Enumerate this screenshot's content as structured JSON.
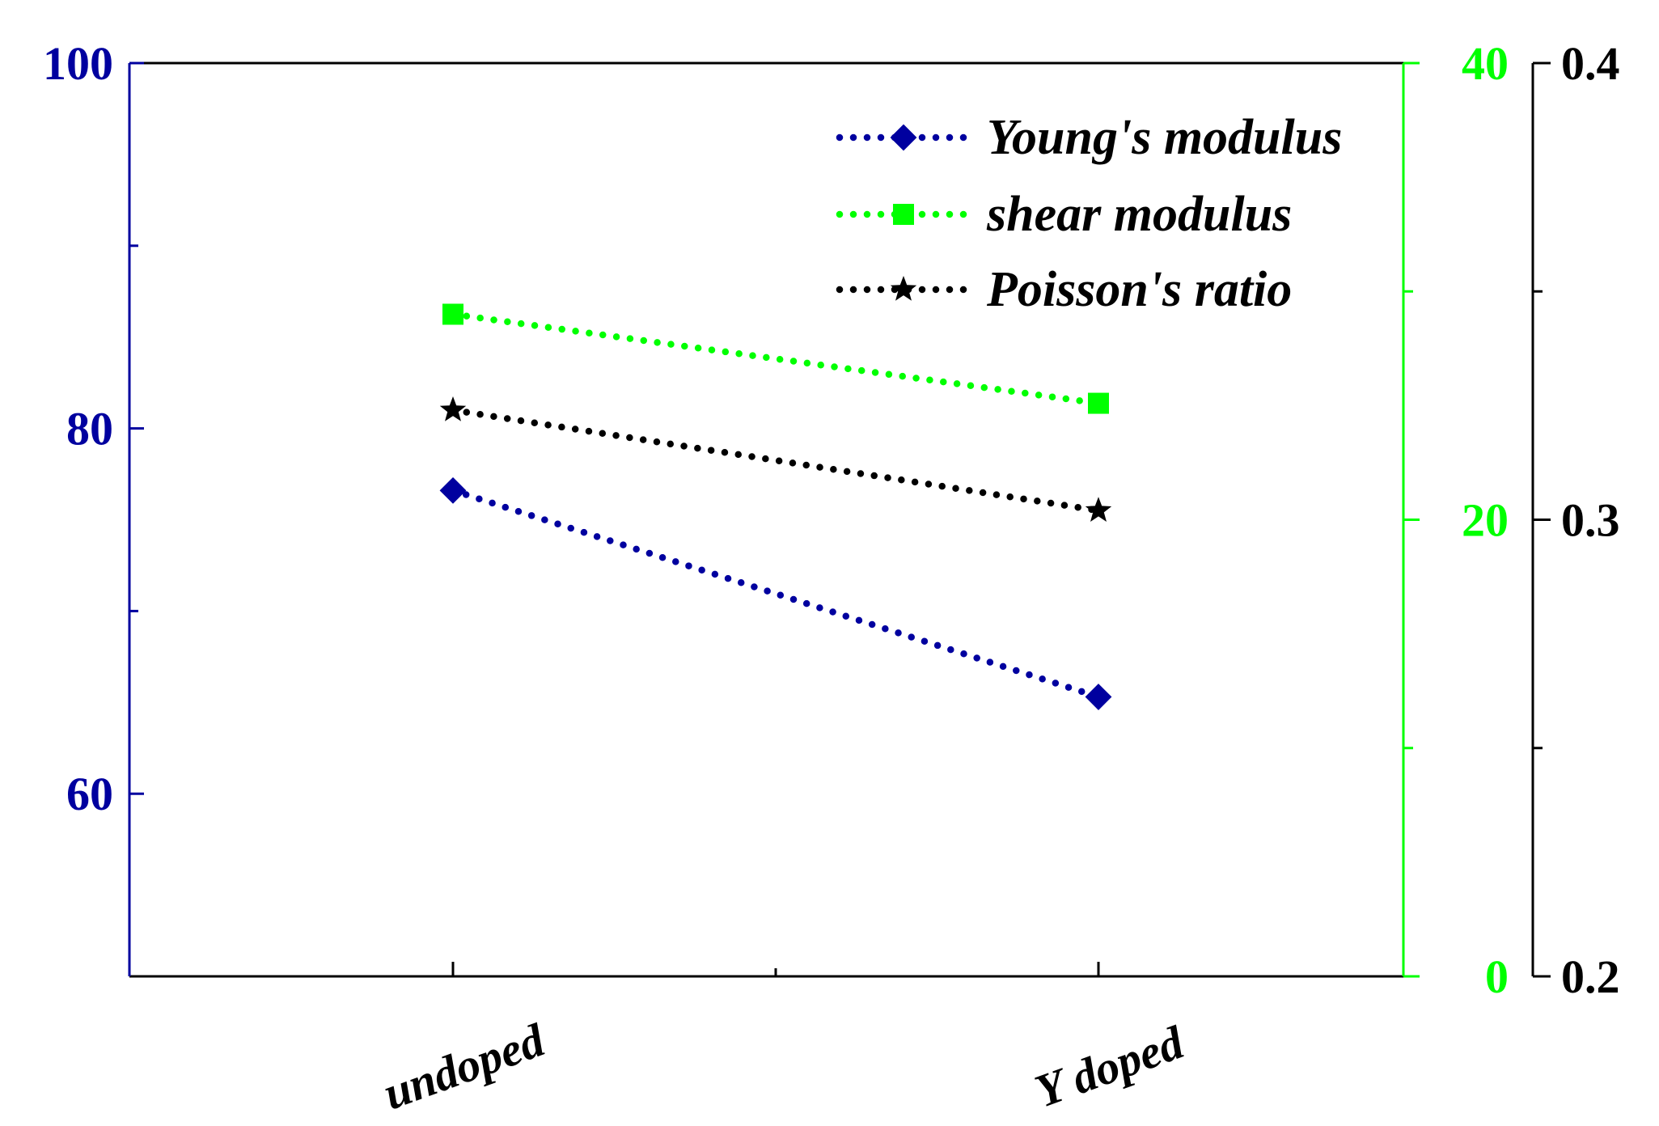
{
  "chart_data": {
    "type": "line",
    "categories": [
      "undoped",
      "Y doped"
    ],
    "series": [
      {
        "name": "Young's modulus",
        "axis": "left",
        "color": "#00009f",
        "marker": "diamond",
        "values": [
          76.6,
          65.3
        ]
      },
      {
        "name": "shear modulus",
        "axis": "right1",
        "color": "#00ff00",
        "marker": "square",
        "values": [
          29.0,
          25.1
        ]
      },
      {
        "name": "Poisson's ratio",
        "axis": "right2",
        "color": "#000000",
        "marker": "star",
        "values": [
          0.324,
          0.302
        ]
      }
    ],
    "axes": {
      "left": {
        "ylim": [
          50,
          100
        ],
        "ticks": [
          60,
          80,
          100
        ],
        "tick_labels": [
          "60",
          "80",
          "100"
        ],
        "color": "#00009f"
      },
      "right1": {
        "ylim": [
          0,
          40
        ],
        "ticks": [
          0,
          20,
          40
        ],
        "tick_labels": [
          "0",
          "20",
          "40"
        ],
        "color": "#00ff00"
      },
      "right2": {
        "ylim": [
          0.2,
          0.4
        ],
        "ticks": [
          0.2,
          0.3,
          0.4
        ],
        "tick_labels": [
          "0.2",
          "0.3",
          "0.4"
        ],
        "color": "#000000"
      }
    },
    "legend": {
      "placement": "top-right"
    },
    "title": "",
    "xlabel": "",
    "ylabel": ""
  }
}
